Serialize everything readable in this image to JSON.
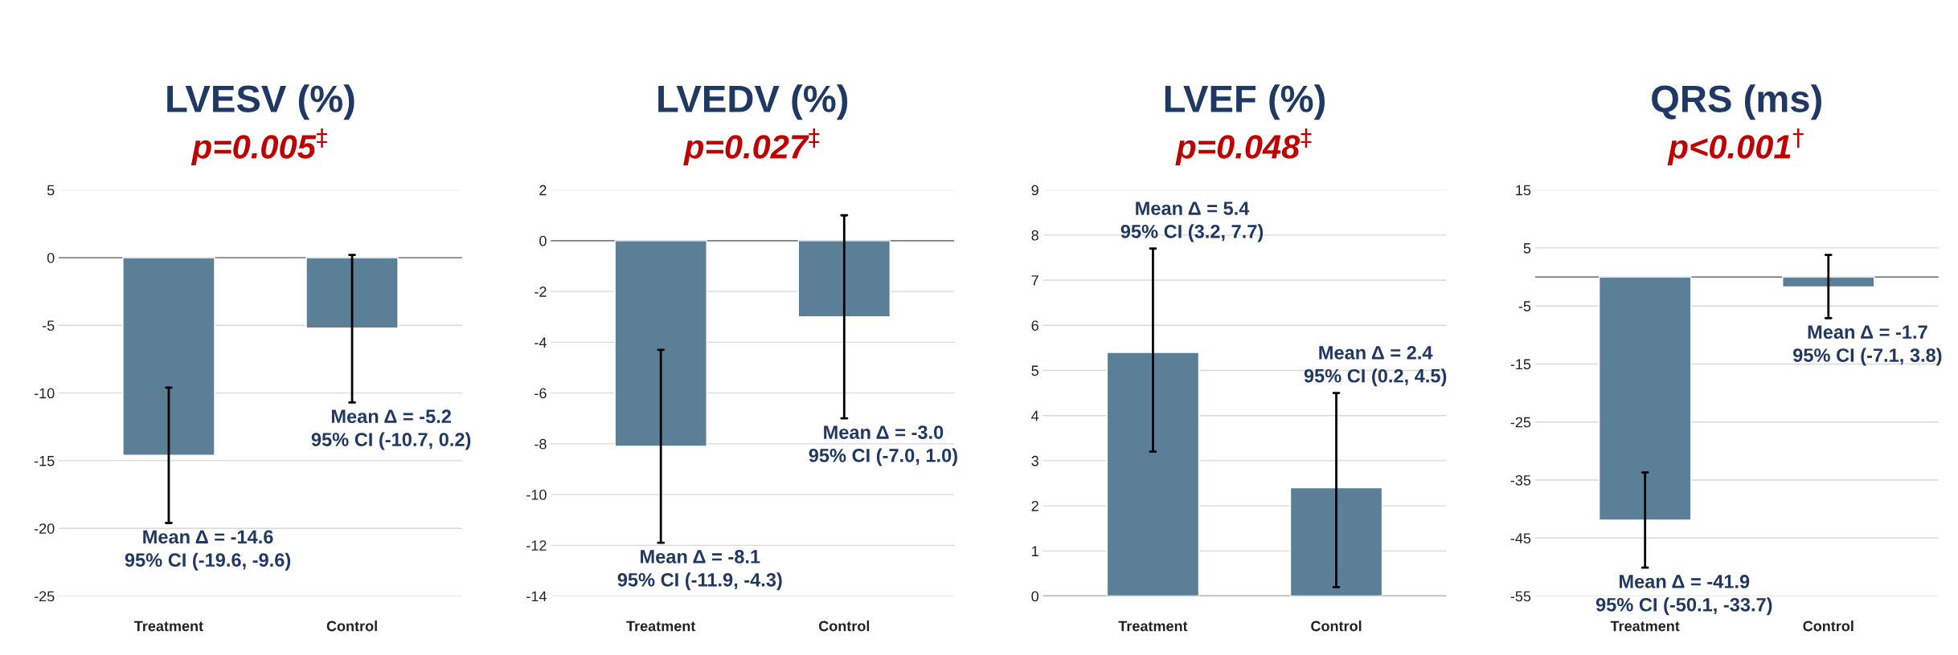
{
  "chart_data": [
    {
      "type": "bar",
      "title": "LVESV (%)",
      "subtitle": "p=0.005$^{‡}$",
      "categories": [
        "Treatment",
        "Control"
      ],
      "values": [
        -14.6,
        -5.2
      ],
      "errors": [
        [
          -19.6,
          -9.6
        ],
        [
          -10.7,
          0.2
        ]
      ],
      "color": "#5b7f96",
      "ylim": [
        -25,
        5
      ],
      "yticks": [
        -25,
        -20,
        -15,
        -10,
        -5,
        0,
        5
      ],
      "grid": "y",
      "annotations": [
        "Mean Δ = -14.6\n95% CI (-19.6, -9.6)",
        "Mean Δ = -5.2\n95% CI (-10.7, 0.2)"
      ]
    },
    {
      "type": "bar",
      "title": "LVEDV (%)",
      "subtitle": "p=0.027$^{‡}$",
      "categories": [
        "Treatment",
        "Control"
      ],
      "values": [
        -8.1,
        -3.0
      ],
      "errors": [
        [
          -11.9,
          -4.3
        ],
        [
          -7.0,
          1.0
        ]
      ],
      "color": "#5b7f96",
      "ylim": [
        -14,
        2
      ],
      "yticks": [
        -14,
        -12,
        -10,
        -8,
        -6,
        -4,
        -2,
        0,
        2
      ],
      "grid": "y",
      "annotations": [
        "Mean Δ = -8.1\n95% CI (-11.9, -4.3)",
        "Mean Δ = -3.0\n95% CI (-7.0, 1.0)"
      ]
    },
    {
      "type": "bar",
      "title": "LVEF (%)",
      "subtitle": "p=0.048$^{‡}$",
      "categories": [
        "Treatment",
        "Control"
      ],
      "values": [
        5.4,
        2.4
      ],
      "errors": [
        [
          3.2,
          7.7
        ],
        [
          0.2,
          4.5
        ]
      ],
      "color": "#5b7f96",
      "ylim": [
        0,
        9
      ],
      "yticks": [
        0,
        1,
        2,
        3,
        4,
        5,
        6,
        7,
        8,
        9
      ],
      "grid": "y",
      "annotations": [
        "Mean Δ = 5.4\n95% CI (3.2, 7.7)",
        "Mean Δ = 2.4\n95% CI (0.2, 4.5)"
      ]
    },
    {
      "type": "bar",
      "title": "QRS (ms)",
      "subtitle": "p<0.001$^{†}$",
      "categories": [
        "Treatment",
        "Control"
      ],
      "values": [
        -41.9,
        -1.7
      ],
      "errors": [
        [
          -50.1,
          -33.7
        ],
        [
          -7.1,
          3.8
        ]
      ],
      "color": "#5b7f96",
      "ylim": [
        -55,
        15
      ],
      "yticks": [
        -55,
        -45,
        -35,
        -25,
        -15,
        -5,
        5,
        15
      ],
      "grid": "y",
      "annotations": [
        "Mean Δ = -41.9\n95% CI (-50.1, -33.7)",
        "Mean Δ = -1.7\n95% CI (-7.1, 3.8)"
      ]
    }
  ]
}
